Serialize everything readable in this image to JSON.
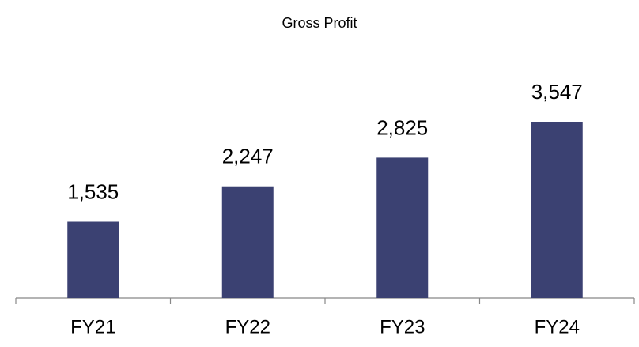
{
  "chart_data": {
    "type": "bar",
    "title": "Gross Profit",
    "categories": [
      "FY21",
      "FY22",
      "FY23",
      "FY24"
    ],
    "values": [
      1535,
      2247,
      2825,
      3547
    ],
    "value_labels": [
      "1,535",
      "2,247",
      "2,825",
      "3,547"
    ],
    "color": "#3b4172"
  }
}
